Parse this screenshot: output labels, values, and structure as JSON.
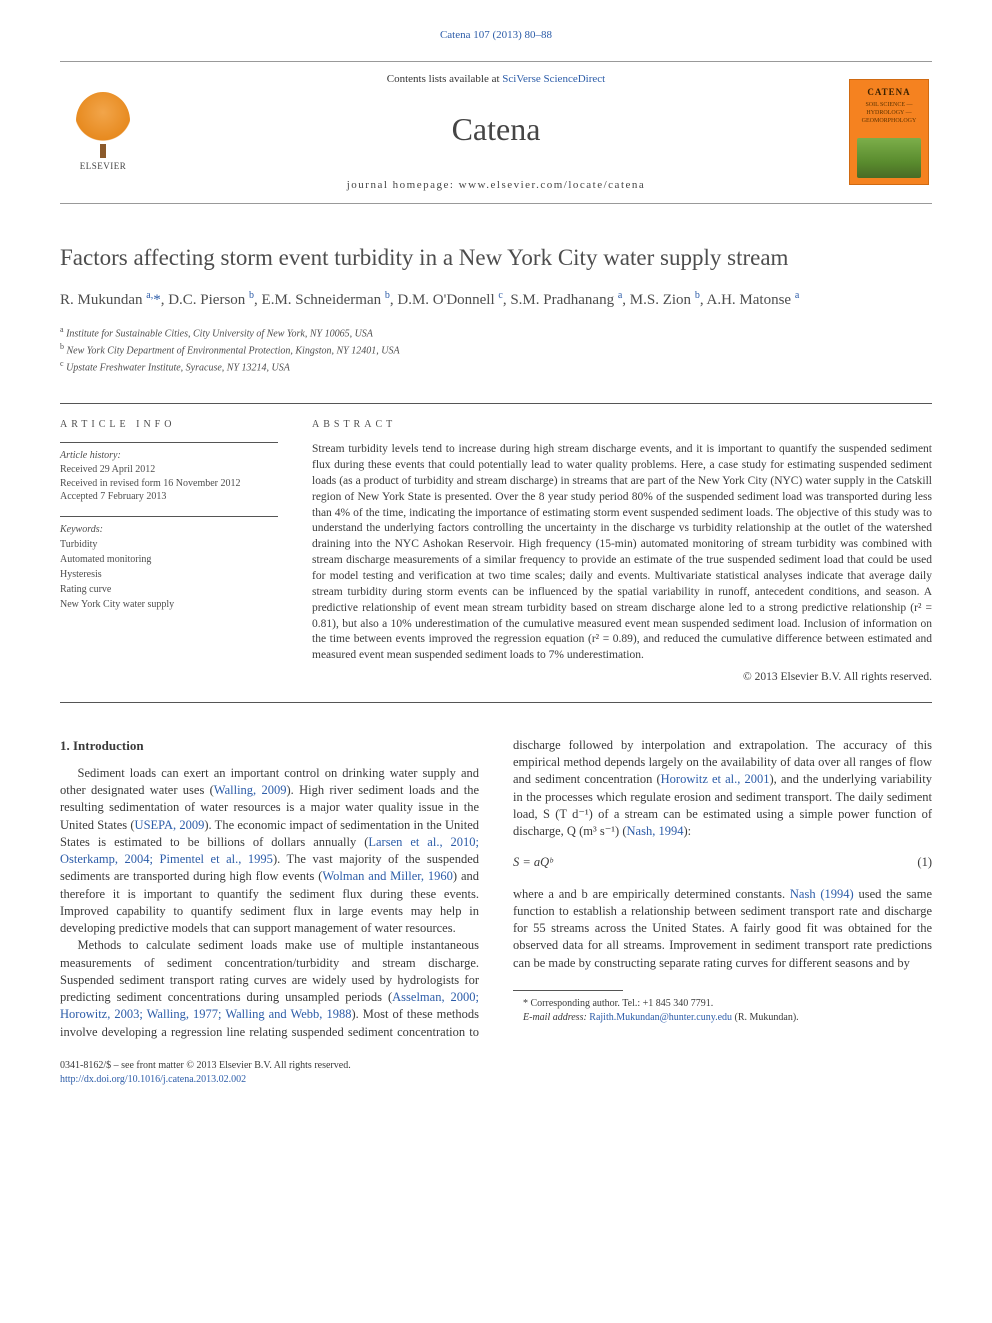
{
  "running_head": "Catena 107 (2013) 80–88",
  "masthead": {
    "contents_prefix": "Contents lists available at ",
    "contents_link": "SciVerse ScienceDirect",
    "journal_name": "Catena",
    "homepage_label": "journal homepage: www.elsevier.com/locate/catena",
    "publisher_word": "ELSEVIER",
    "cover_title": "CATENA",
    "cover_sub": "SOIL SCIENCE — HYDROLOGY — GEOMORPHOLOGY"
  },
  "title": "Factors affecting storm event turbidity in a New York City water supply stream",
  "authors_html": "R. Mukundan <sup>a,</sup><span class='corr-star'>*</span>, D.C. Pierson <sup>b</sup>, E.M. Schneiderman <sup>b</sup>, D.M. O'Donnell <sup>c</sup>, S.M. Pradhanang <sup>a</sup>, M.S. Zion <sup>b</sup>, A.H. Matonse <sup>a</sup>",
  "affiliations": [
    {
      "mark": "a",
      "text": "Institute for Sustainable Cities, City University of New York, NY 10065, USA"
    },
    {
      "mark": "b",
      "text": "New York City Department of Environmental Protection, Kingston, NY 12401, USA"
    },
    {
      "mark": "c",
      "text": "Upstate Freshwater Institute, Syracuse, NY 13214, USA"
    }
  ],
  "article_info": {
    "heading": "ARTICLE INFO",
    "history_label": "Article history:",
    "history": [
      "Received 29 April 2012",
      "Received in revised form 16 November 2012",
      "Accepted 7 February 2013"
    ],
    "keywords_label": "Keywords:",
    "keywords": [
      "Turbidity",
      "Automated monitoring",
      "Hysteresis",
      "Rating curve",
      "New York City water supply"
    ]
  },
  "abstract": {
    "heading": "ABSTRACT",
    "text": "Stream turbidity levels tend to increase during high stream discharge events, and it is important to quantify the suspended sediment flux during these events that could potentially lead to water quality problems. Here, a case study for estimating suspended sediment loads (as a product of turbidity and stream discharge) in streams that are part of the New York City (NYC) water supply in the Catskill region of New York State is presented. Over the 8 year study period 80% of the suspended sediment load was transported during less than 4% of the time, indicating the importance of estimating storm event suspended sediment loads. The objective of this study was to understand the underlying factors controlling the uncertainty in the discharge vs turbidity relationship at the outlet of the watershed draining into the NYC Ashokan Reservoir. High frequency (15-min) automated monitoring of stream turbidity was combined with stream discharge measurements of a similar frequency to provide an estimate of the true suspended sediment load that could be used for model testing and verification at two time scales; daily and events. Multivariate statistical analyses indicate that average daily stream turbidity during storm events can be influenced by the spatial variability in runoff, antecedent conditions, and season. A predictive relationship of event mean stream turbidity based on stream discharge alone led to a strong predictive relationship (r² = 0.81), but also a 10% underestimation of the cumulative measured event mean suspended sediment load. Inclusion of information on the time between events improved the regression equation (r² = 0.89), and reduced the cumulative difference between estimated and measured event mean suspended sediment loads to 7% underestimation.",
    "copyright": "© 2013 Elsevier B.V. All rights reserved."
  },
  "section1": {
    "heading": "1. Introduction",
    "para1_pre": "Sediment loads can exert an important control on drinking water supply and other designated water uses (",
    "para1_ref1": "Walling, 2009",
    "para1_mid1": "). High river sediment loads and the resulting sedimentation of water resources is a major water quality issue in the United States (",
    "para1_ref2": "USEPA, 2009",
    "para1_mid2": "). The economic impact of sedimentation in the United States is estimated to be billions of dollars annually (",
    "para1_ref3": "Larsen et al., 2010; Osterkamp, 2004; Pimentel et al., 1995",
    "para1_mid3": "). The vast majority of the suspended sediments are transported during high flow events (",
    "para1_ref4": "Wolman and Miller, 1960",
    "para1_post": ") and therefore it is important to quantify the sediment flux during these events. Improved capability to quantify sediment flux in large events may help in developing predictive models that can support management of water resources.",
    "para2_pre": "Methods to calculate sediment loads make use of multiple instantaneous measurements of sediment concentration/turbidity and stream discharge. Suspended sediment transport rating curves are widely used by hydrologists for predicting sediment concentrations during unsampled periods (",
    "para2_ref1": "Asselman, 2000; Horowitz, 2003; Walling, 1977; Walling and Webb, 1988",
    "para2_mid1": "). Most of these methods involve developing a regression line relating suspended sediment concentration to discharge followed by interpolation and extrapolation. The accuracy of this empirical method depends largely on the availability of data over all ranges of flow and sediment concentration (",
    "para2_ref2": "Horowitz et al., 2001",
    "para2_mid2": "), and the underlying variability in the processes which regulate erosion and sediment transport. The daily sediment load, S (T d⁻¹) of a stream can be estimated using a simple power function of discharge, Q (m³ s⁻¹) (",
    "para2_ref3": "Nash, 1994",
    "para2_post": "):",
    "equation": "S = aQᵇ",
    "eqno": "(1)",
    "para3_pre": "where a and b are empirically determined constants. ",
    "para3_ref1": "Nash (1994)",
    "para3_post": " used the same function to establish a relationship between sediment transport rate and discharge for 55 streams across the United States. A fairly good fit was obtained for the observed data for all streams. Improvement in sediment transport rate predictions can be made by constructing separate rating curves for different seasons and by"
  },
  "footnotes": {
    "corr": "Corresponding author. Tel.: +1 845 340 7791.",
    "email_label": "E-mail address:",
    "email": "Rajith.Mukundan@hunter.cuny.edu",
    "email_who": "(R. Mukundan)."
  },
  "pagefoot": {
    "line1": "0341-8162/$ – see front matter © 2013 Elsevier B.V. All rights reserved.",
    "doi": "http://dx.doi.org/10.1016/j.catena.2013.02.002"
  },
  "colors": {
    "link": "#2c5ca8",
    "text": "#3a3a3a",
    "rule": "#555555",
    "cover_bg": "#f58220"
  }
}
